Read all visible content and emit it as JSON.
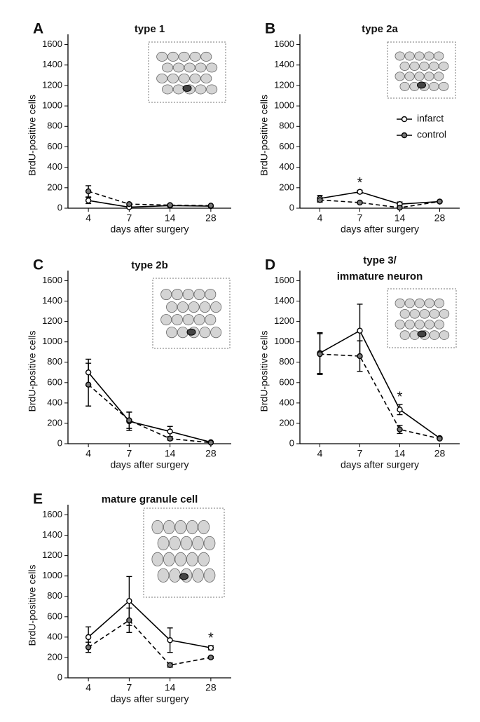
{
  "chart_data": [
    {
      "type": "line",
      "panel": "A",
      "title": "type 1",
      "ylabel": "BrdU-positive cells",
      "xlabel": "days after surgery",
      "categories": [
        "4",
        "7",
        "14",
        "28"
      ],
      "ylim": [
        0,
        1700
      ],
      "yticks": [
        0,
        200,
        400,
        600,
        800,
        1000,
        1200,
        1400,
        1600
      ],
      "series": [
        {
          "name": "infarct",
          "color": "#000000",
          "marker_fill": "#ffffff",
          "line_style": "solid",
          "values": [
            75,
            10,
            25,
            20
          ],
          "errors": [
            30,
            10,
            10,
            5
          ]
        },
        {
          "name": "control",
          "color": "#000000",
          "marker_fill": "#777777",
          "line_style": "dashed",
          "values": [
            165,
            40,
            30,
            25
          ],
          "errors": [
            55,
            10,
            10,
            5
          ]
        }
      ]
    },
    {
      "type": "line",
      "panel": "B",
      "title": "type 2a",
      "ylabel": "BrdU-positive cells",
      "xlabel": "days after surgery",
      "categories": [
        "4",
        "7",
        "14",
        "28"
      ],
      "ylim": [
        0,
        1700
      ],
      "yticks": [
        0,
        200,
        400,
        600,
        800,
        1000,
        1200,
        1400,
        1600
      ],
      "legend": "right",
      "annotations": [
        {
          "text": "*",
          "x": "7"
        }
      ],
      "series": [
        {
          "name": "infarct",
          "color": "#000000",
          "marker_fill": "#ffffff",
          "line_style": "solid",
          "values": [
            95,
            160,
            40,
            65
          ],
          "errors": [
            30,
            15,
            20,
            10
          ]
        },
        {
          "name": "control",
          "color": "#000000",
          "marker_fill": "#777777",
          "line_style": "dashed",
          "values": [
            80,
            55,
            5,
            65
          ],
          "errors": [
            20,
            10,
            5,
            10
          ]
        }
      ]
    },
    {
      "type": "line",
      "panel": "C",
      "title": "type 2b",
      "ylabel": "BrdU-positive cells",
      "xlabel": "days after surgery",
      "categories": [
        "4",
        "7",
        "14",
        "28"
      ],
      "ylim": [
        0,
        1700
      ],
      "yticks": [
        0,
        200,
        400,
        600,
        800,
        1000,
        1200,
        1400,
        1600
      ],
      "series": [
        {
          "name": "infarct",
          "color": "#000000",
          "marker_fill": "#ffffff",
          "line_style": "solid",
          "values": [
            700,
            220,
            120,
            15
          ],
          "errors": [
            130,
            90,
            50,
            5
          ]
        },
        {
          "name": "control",
          "color": "#000000",
          "marker_fill": "#777777",
          "line_style": "dashed",
          "values": [
            580,
            230,
            50,
            10
          ],
          "errors": [
            210,
            80,
            15,
            5
          ]
        }
      ]
    },
    {
      "type": "line",
      "panel": "D",
      "title": [
        "type 3/",
        "immature neuron"
      ],
      "ylabel": "BrdU-positive cells",
      "xlabel": "days after surgery",
      "categories": [
        "4",
        "7",
        "14",
        "28"
      ],
      "ylim": [
        0,
        1700
      ],
      "yticks": [
        0,
        200,
        400,
        600,
        800,
        1000,
        1200,
        1400,
        1600
      ],
      "annotations": [
        {
          "text": "*",
          "x": "14"
        }
      ],
      "series": [
        {
          "name": "infarct",
          "color": "#000000",
          "marker_fill": "#ffffff",
          "line_style": "solid",
          "values": [
            890,
            1110,
            335,
            55
          ],
          "errors": [
            200,
            260,
            50,
            10
          ]
        },
        {
          "name": "control",
          "color": "#000000",
          "marker_fill": "#777777",
          "line_style": "dashed",
          "values": [
            880,
            860,
            140,
            50
          ],
          "errors": [
            200,
            150,
            40,
            10
          ]
        }
      ]
    },
    {
      "type": "line",
      "panel": "E",
      "title": "mature granule cell",
      "ylabel": "BrdU-positive cells",
      "xlabel": "days after surgery",
      "categories": [
        "4",
        "7",
        "14",
        "28"
      ],
      "ylim": [
        0,
        1700
      ],
      "yticks": [
        0,
        200,
        400,
        600,
        800,
        1000,
        1200,
        1400,
        1600
      ],
      "annotations": [
        {
          "text": "*",
          "x": "28"
        }
      ],
      "series": [
        {
          "name": "infarct",
          "color": "#000000",
          "marker_fill": "#ffffff",
          "line_style": "solid",
          "values": [
            400,
            755,
            370,
            295
          ],
          "errors": [
            100,
            240,
            120,
            20
          ]
        },
        {
          "name": "control",
          "color": "#000000",
          "marker_fill": "#777777",
          "line_style": "dashed",
          "values": [
            300,
            565,
            125,
            200
          ],
          "errors": [
            50,
            120,
            20,
            10
          ]
        }
      ]
    }
  ]
}
